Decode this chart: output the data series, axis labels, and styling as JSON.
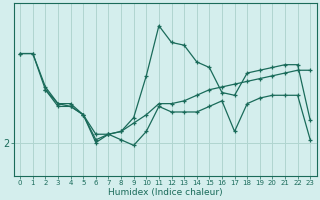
{
  "xlabel": "Humidex (Indice chaleur)",
  "x": [
    0,
    1,
    2,
    3,
    4,
    5,
    6,
    7,
    8,
    9,
    10,
    11,
    12,
    13,
    14,
    15,
    16,
    17,
    18,
    19,
    20,
    21,
    22,
    23
  ],
  "line_top": [
    3.6,
    3.6,
    3.0,
    2.7,
    2.7,
    2.5,
    2.0,
    2.15,
    2.2,
    2.45,
    3.2,
    4.1,
    3.8,
    3.75,
    3.45,
    3.35,
    2.9,
    2.85,
    3.25,
    3.3,
    3.35,
    3.4,
    3.4,
    2.4
  ],
  "line_mid": [
    3.6,
    3.6,
    2.95,
    2.65,
    2.65,
    2.5,
    2.05,
    2.15,
    2.2,
    2.35,
    2.5,
    2.7,
    2.7,
    2.75,
    2.85,
    2.95,
    3.0,
    3.05,
    3.1,
    3.15,
    3.2,
    3.25,
    3.3,
    3.3
  ],
  "line_bot": [
    null,
    null,
    2.95,
    2.7,
    2.65,
    2.5,
    2.15,
    2.15,
    2.05,
    1.95,
    2.2,
    2.65,
    2.55,
    2.55,
    2.55,
    2.65,
    2.75,
    2.2,
    2.7,
    2.8,
    2.85,
    2.85,
    2.85,
    2.05
  ],
  "bg_color": "#d4eeed",
  "grid_color": "#b0d5d0",
  "line_color": "#1a6b5a",
  "ytick_val": 2.0,
  "ylim": [
    1.4,
    4.5
  ],
  "xlim_min": -0.5,
  "xlim_max": 23.5
}
